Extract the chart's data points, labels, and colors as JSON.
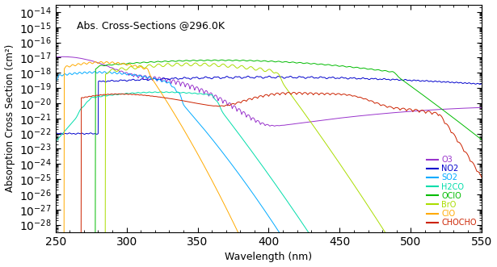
{
  "title": "Abs. Cross-Sections @296.0K",
  "xlabel": "Wavelength (nm)",
  "ylabel": "Absorption Cross Section (cm²)",
  "xlim": [
    250,
    550
  ],
  "ylim_log": [
    -28.5,
    -13.5
  ],
  "species": [
    "O3",
    "NO2",
    "SO2",
    "H2CO",
    "OClO",
    "BrO",
    "ClO",
    "CHOCHO"
  ],
  "colors": {
    "O3": "#9933cc",
    "NO2": "#0000cc",
    "SO2": "#00aaff",
    "H2CO": "#00ddaa",
    "OClO": "#00bb00",
    "BrO": "#aadd00",
    "ClO": "#ffaa00",
    "CHOCHO": "#cc2200"
  },
  "background": "#ffffff"
}
